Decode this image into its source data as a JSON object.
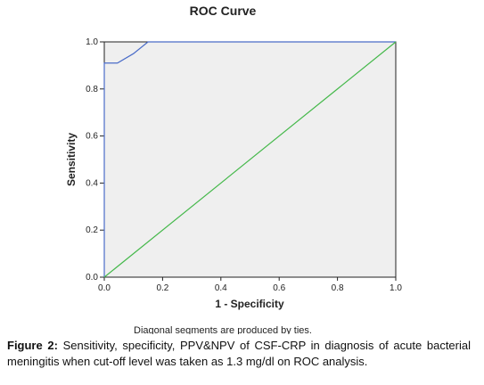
{
  "chart_data": {
    "type": "line",
    "title": "ROC Curve",
    "xlabel": "1 - Specificity",
    "ylabel": "Sensitivity",
    "note": "Diagonal segments are produced by ties.",
    "xlim": [
      0,
      1
    ],
    "ylim": [
      0,
      1
    ],
    "xticks": [
      {
        "value": 0,
        "label": "0.0"
      },
      0.2,
      0.4,
      0.6,
      0.8,
      {
        "value": 1,
        "label": "1.0"
      }
    ],
    "yticks": [
      {
        "value": 0,
        "label": "0.0"
      },
      0.2,
      0.4,
      0.6,
      0.8,
      {
        "value": 1,
        "label": "1.0"
      }
    ],
    "series": [
      {
        "color": "#4a6cc8",
        "x": [
          0,
          0,
          0.045,
          0.1,
          0.15,
          1
        ],
        "values": [
          0,
          0.91,
          0.91,
          0.95,
          1,
          1
        ]
      },
      {
        "color": "#44b84a",
        "x": [
          0,
          1
        ],
        "values": [
          0,
          1
        ]
      }
    ]
  },
  "caption": {
    "label": "Figure 2:",
    "text": "Sensitivity, specificity, PPV&NPV of CSF-CRP in diagnosis of acute bacterial meningitis when cut-off level was taken as 1.3 mg/dl on ROC analysis."
  }
}
